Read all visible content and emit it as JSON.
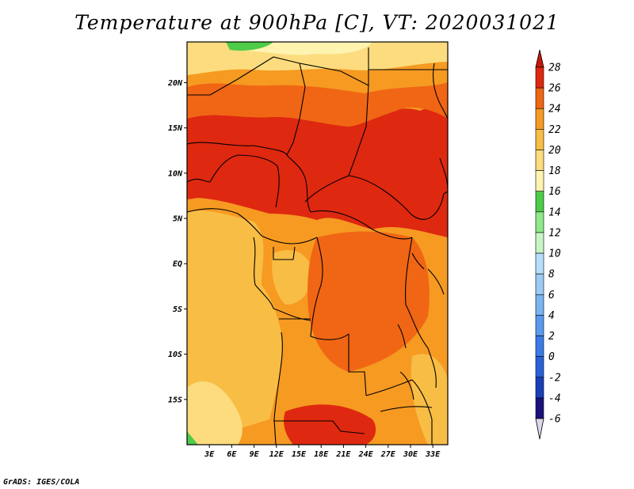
{
  "title": "Temperature at 900hPa [C], VT: 2020031021",
  "credit": "GrADS: IGES/COLA",
  "map": {
    "lon_range": [
      0,
      35
    ],
    "lat_range": [
      -20,
      24.5
    ],
    "lon_ticks": [
      {
        "value": 3,
        "label": "3E"
      },
      {
        "value": 6,
        "label": "6E"
      },
      {
        "value": 9,
        "label": "9E"
      },
      {
        "value": 12,
        "label": "12E"
      },
      {
        "value": 15,
        "label": "15E"
      },
      {
        "value": 18,
        "label": "18E"
      },
      {
        "value": 21,
        "label": "21E"
      },
      {
        "value": 24,
        "label": "24E"
      },
      {
        "value": 27,
        "label": "27E"
      },
      {
        "value": 30,
        "label": "30E"
      },
      {
        "value": 33,
        "label": "33E"
      }
    ],
    "lat_ticks": [
      {
        "value": 20,
        "label": "20N"
      },
      {
        "value": 15,
        "label": "15N"
      },
      {
        "value": 10,
        "label": "10N"
      },
      {
        "value": 5,
        "label": "5N"
      },
      {
        "value": 0,
        "label": "EQ"
      },
      {
        "value": -5,
        "label": "5S"
      },
      {
        "value": -10,
        "label": "10S"
      },
      {
        "value": -15,
        "label": "15S"
      }
    ]
  },
  "colorbar": {
    "levels": [
      {
        "value": -6,
        "label": "-6",
        "color": "#ddd7ee"
      },
      {
        "value": -4,
        "label": "-4",
        "color": "#1a117a"
      },
      {
        "value": -2,
        "label": "-2",
        "color": "#1a3fb8"
      },
      {
        "value": 0,
        "label": "0",
        "color": "#2a60d8"
      },
      {
        "value": 2,
        "label": "2",
        "color": "#3b7be8"
      },
      {
        "value": 4,
        "label": "4",
        "color": "#5a99ee"
      },
      {
        "value": 6,
        "label": "6",
        "color": "#7ab4f2"
      },
      {
        "value": 8,
        "label": "8",
        "color": "#9ccaf4"
      },
      {
        "value": 10,
        "label": "10",
        "color": "#b5defa"
      },
      {
        "value": 12,
        "label": "12",
        "color": "#c8f5c4"
      },
      {
        "value": 14,
        "label": "14",
        "color": "#8fe889"
      },
      {
        "value": 16,
        "label": "16",
        "color": "#4ecb48"
      },
      {
        "value": 18,
        "label": "18",
        "color": "#fff3b0"
      },
      {
        "value": 20,
        "label": "20",
        "color": "#fcdc7e"
      },
      {
        "value": 22,
        "label": "22",
        "color": "#f8bd45"
      },
      {
        "value": 24,
        "label": "24",
        "color": "#f69a22"
      },
      {
        "value": 26,
        "label": "26",
        "color": "#f06614"
      },
      {
        "value": 28,
        "label": "28",
        "color": "#df2810"
      }
    ],
    "top_color": "#c81808",
    "bottom_color": "#ddd7ee"
  }
}
